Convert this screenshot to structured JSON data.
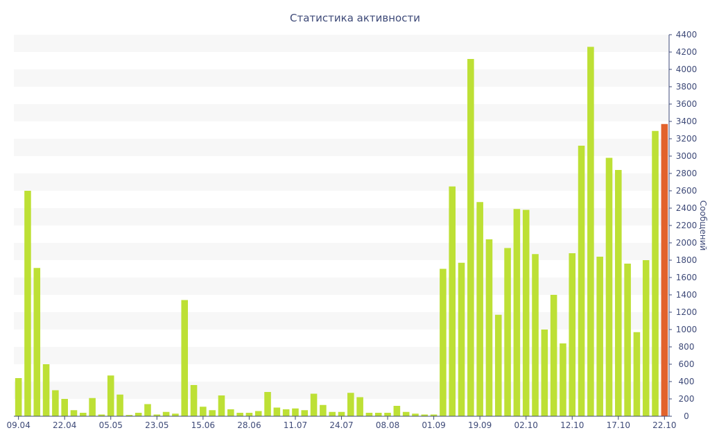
{
  "chart_data": {
    "type": "bar",
    "title": "Статистика активности",
    "xlabel": "",
    "ylabel": "Сообщений",
    "ylim": [
      0,
      4400
    ],
    "yticks": [
      0,
      200,
      400,
      600,
      800,
      1000,
      1200,
      1400,
      1600,
      1800,
      2000,
      2200,
      2400,
      2600,
      2800,
      3000,
      3200,
      3400,
      3600,
      3800,
      4000,
      4200,
      4400
    ],
    "x_tick_labels": [
      "09.04",
      "22.04",
      "05.05",
      "23.05",
      "15.06",
      "28.06",
      "11.07",
      "24.07",
      "08.08",
      "01.09",
      "19.09",
      "02.10",
      "12.10",
      "17.10",
      "22.10"
    ],
    "x_tick_indices": [
      0,
      5,
      10,
      15,
      20,
      25,
      30,
      35,
      40,
      45,
      50,
      55,
      60,
      65,
      70
    ],
    "values": [
      440,
      2600,
      1710,
      600,
      300,
      200,
      70,
      40,
      210,
      20,
      470,
      250,
      15,
      40,
      140,
      20,
      50,
      30,
      1340,
      360,
      110,
      70,
      240,
      80,
      40,
      40,
      60,
      280,
      100,
      80,
      90,
      70,
      260,
      130,
      50,
      50,
      270,
      220,
      40,
      40,
      40,
      120,
      50,
      30,
      20,
      20,
      1700,
      2650,
      1770,
      4120,
      2470,
      2040,
      1170,
      1940,
      2390,
      2380,
      1870,
      1000,
      1400,
      840,
      1880,
      3120,
      4260,
      1840,
      2980,
      2840,
      1760,
      970,
      1800,
      3290,
      3370
    ],
    "highlight_index": 70,
    "grid": "horizontal-bands",
    "legend": "none",
    "colors": {
      "bar": "#bde035",
      "highlight": "#e2622c",
      "band": "#f7f7f7",
      "text": "#3e4a78",
      "axis": "#3e4a78"
    }
  }
}
